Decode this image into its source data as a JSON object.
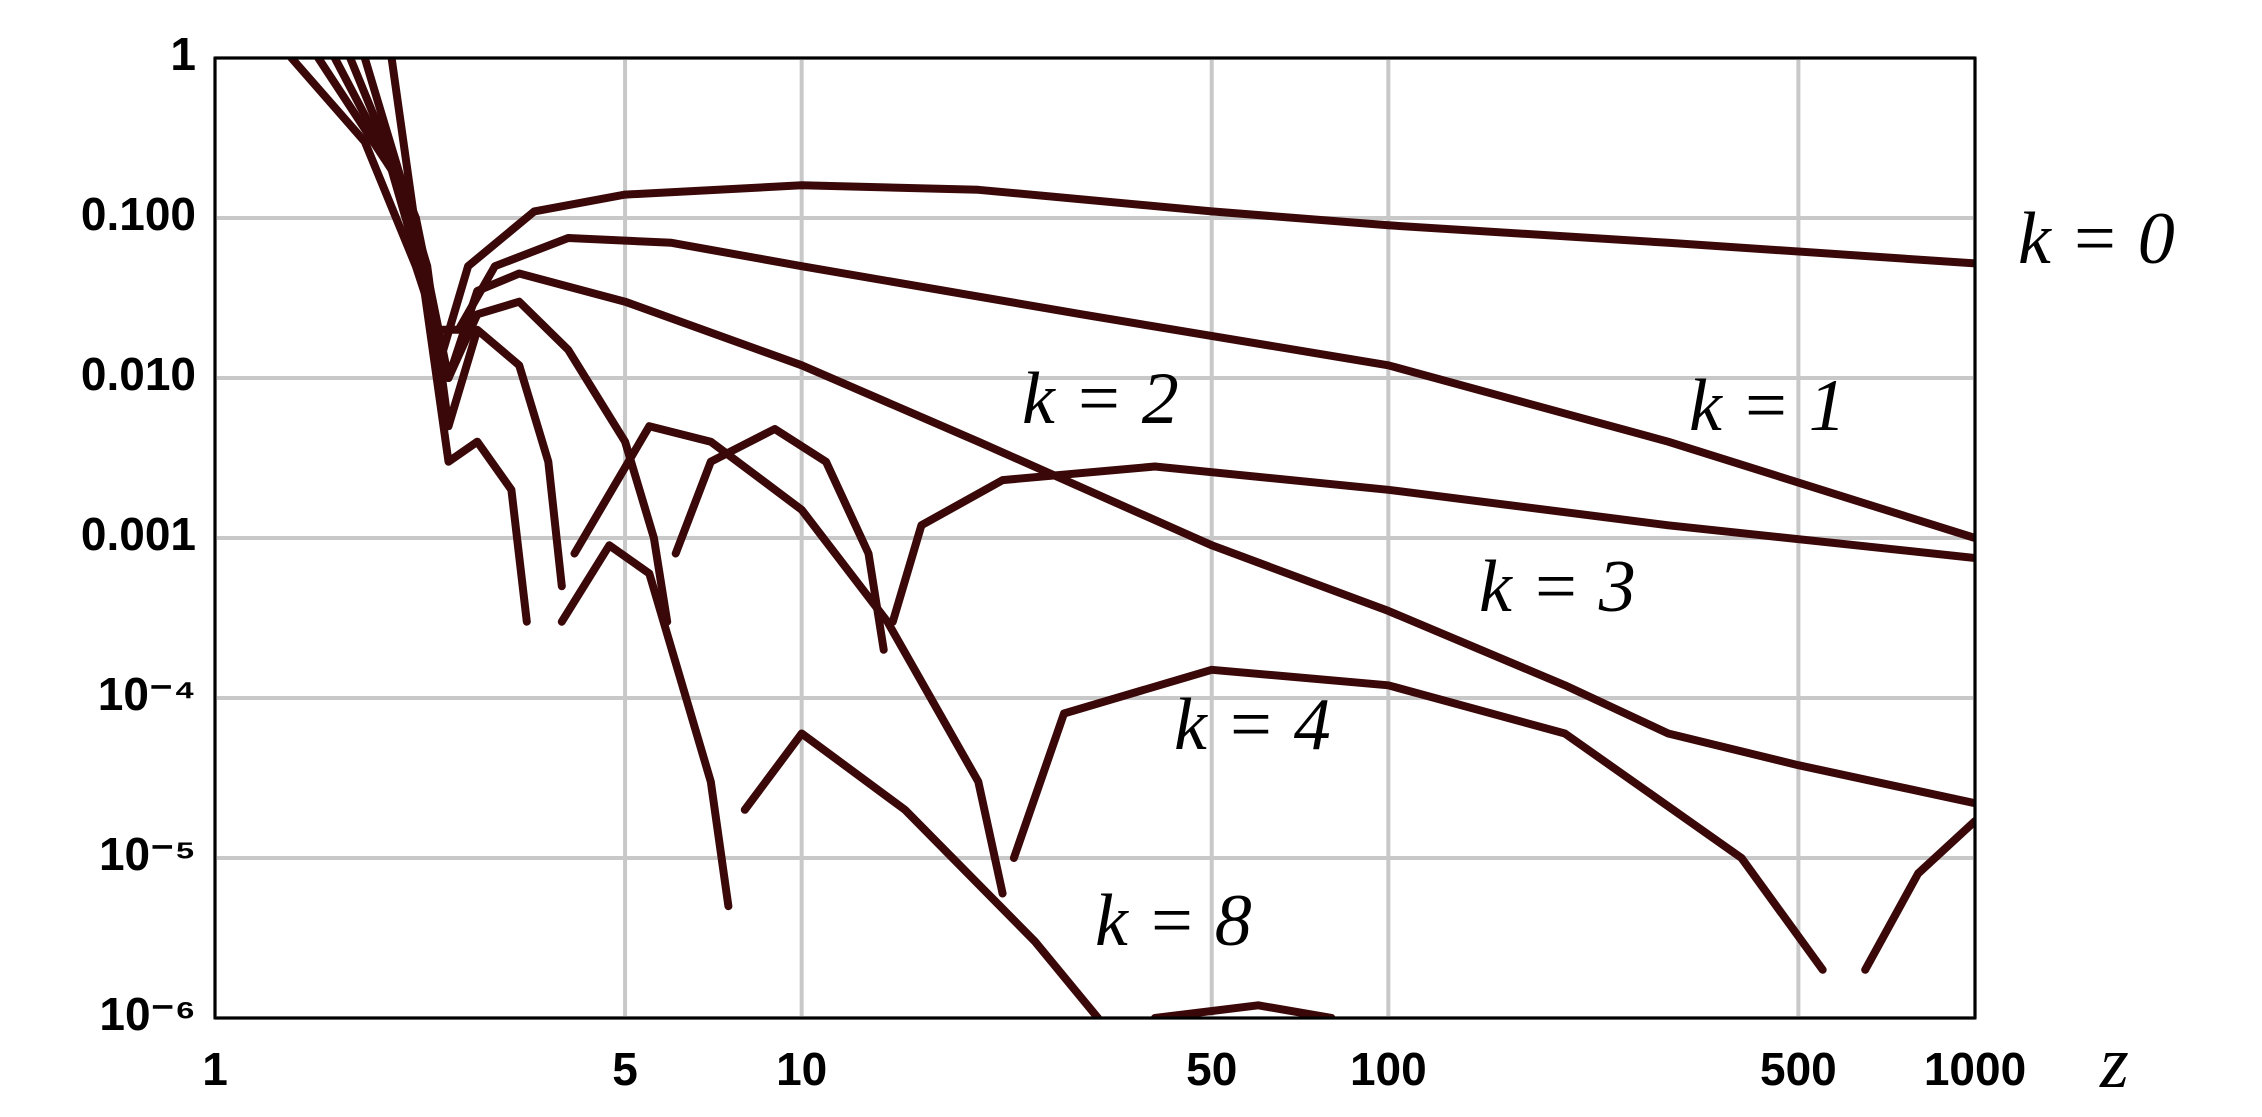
{
  "chart_data": {
    "type": "line",
    "xscale": "log",
    "yscale": "log",
    "grid": true,
    "x_label": "z",
    "xlim": [
      1,
      1000
    ],
    "ylim": [
      1e-06,
      1
    ],
    "xticks": [
      1,
      5,
      10,
      50,
      100,
      500,
      1000
    ],
    "yticks": [
      1,
      {
        "value": 0.1,
        "label": "0.100"
      },
      {
        "value": 0.01,
        "label": "0.010"
      },
      0.001,
      {
        "value": 0.0001,
        "label": "10⁻⁴"
      },
      {
        "value": 1e-05,
        "label": "10⁻⁵"
      },
      {
        "value": 1e-06,
        "label": "10⁻⁶"
      }
    ],
    "series": [
      {
        "name": "k = 0",
        "color": "#3a0808",
        "x": [
          1.35,
          1.8,
          2.2,
          2.45,
          2.7,
          3.5,
          5,
          10,
          20,
          50,
          100,
          300,
          1000
        ],
        "values": [
          1,
          0.3,
          0.05,
          0.015,
          0.05,
          0.11,
          0.14,
          0.16,
          0.15,
          0.11,
          0.09,
          0.07,
          0.052
        ]
      },
      {
        "name": "k = 1",
        "color": "#3a0808",
        "x": [
          1.5,
          2.0,
          2.4,
          2.6,
          3,
          4,
          6,
          10,
          30,
          100,
          300,
          1000
        ],
        "values": [
          1,
          0.2,
          0.02,
          0.02,
          0.05,
          0.075,
          0.07,
          0.05,
          0.025,
          0.012,
          0.004,
          0.001
        ]
      },
      {
        "name": "k = 2",
        "color": "#3a0808",
        "x": [
          1.6,
          2.1,
          2.5,
          2.8,
          3.3,
          4,
          5,
          5.6,
          5.9,
          null,
          6.1,
          7,
          9,
          11,
          13,
          13.8,
          null,
          14.3,
          16,
          22,
          40,
          100,
          300,
          1000
        ],
        "values": [
          1,
          0.15,
          0.01,
          0.025,
          0.03,
          0.015,
          0.004,
          0.001,
          0.0003,
          null,
          0.0008,
          0.003,
          0.0048,
          0.003,
          0.0008,
          0.0002,
          null,
          0.0003,
          0.0012,
          0.0023,
          0.0028,
          0.002,
          0.0012,
          0.00075
        ]
      },
      {
        "name": "k = 3",
        "color": "#3a0808",
        "x": [
          1.7,
          2.2,
          2.5,
          2.8,
          3.3,
          5,
          10,
          20,
          50,
          100,
          200,
          300,
          500,
          1000
        ],
        "values": [
          1,
          0.1,
          0.01,
          0.035,
          0.045,
          0.03,
          0.012,
          0.004,
          0.0009,
          0.00035,
          0.00012,
          6e-05,
          3.8e-05,
          2.2e-05
        ]
      },
      {
        "name": "k = 4",
        "color": "#3a0808",
        "x": [
          1.8,
          2.3,
          2.5,
          2.8,
          3.3,
          3.7,
          3.9,
          null,
          4.1,
          5.5,
          7,
          10,
          14,
          20,
          22,
          null,
          23,
          28,
          50,
          100,
          200,
          400,
          550,
          null,
          650,
          800,
          1000
        ],
        "values": [
          1,
          0.05,
          0.005,
          0.02,
          0.012,
          0.003,
          0.0005,
          null,
          0.0008,
          0.005,
          0.004,
          0.0015,
          0.0003,
          3e-05,
          6e-06,
          null,
          1e-05,
          8e-05,
          0.00015,
          0.00012,
          6e-05,
          1e-05,
          2e-06,
          null,
          2e-06,
          8e-06,
          1.7e-05
        ]
      },
      {
        "name": "k = 8",
        "color": "#3a0808",
        "x": [
          2.0,
          2.5,
          2.8,
          3.2,
          3.4,
          null,
          3.9,
          4.7,
          5.5,
          7,
          7.5,
          null,
          8,
          10,
          15,
          25,
          32,
          null,
          40,
          60,
          80
        ],
        "values": [
          1,
          0.003,
          0.004,
          0.002,
          0.0003,
          null,
          0.0003,
          0.0009,
          0.0006,
          3e-05,
          5e-06,
          null,
          2e-05,
          6e-05,
          2e-05,
          3e-06,
          1e-06,
          null,
          1e-06,
          1.2e-06,
          1e-06
        ]
      }
    ]
  }
}
